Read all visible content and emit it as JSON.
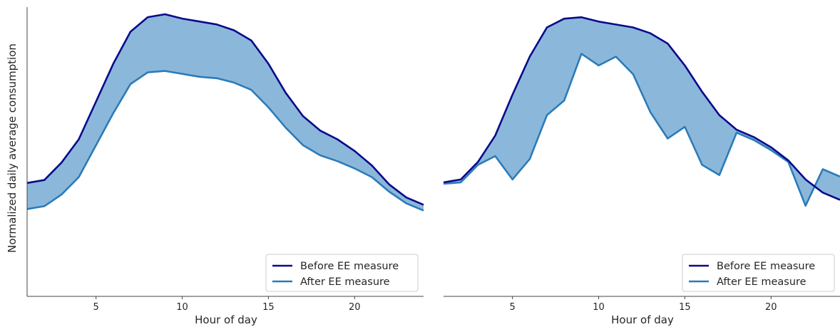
{
  "colors": {
    "before": "#0a0a8a",
    "after": "#2b7bba",
    "fill": "#8bb8da",
    "axis": "#444444"
  },
  "chart_data": [
    {
      "type": "area",
      "title": "",
      "xlabel": "Hour of day",
      "ylabel": "Normalized daily average consumption",
      "xlim": [
        1,
        24
      ],
      "ylim": [
        0,
        1
      ],
      "xticks": [
        5,
        10,
        15,
        20
      ],
      "ytick_labels_shown": false,
      "grid": false,
      "legend_position": "lower-right",
      "x": [
        1,
        2,
        3,
        4,
        5,
        6,
        7,
        8,
        9,
        10,
        11,
        12,
        13,
        14,
        15,
        16,
        17,
        18,
        19,
        20,
        21,
        22,
        23,
        24
      ],
      "series": [
        {
          "name": "Before EE measure",
          "color_key": "before",
          "values": [
            0.44,
            0.45,
            0.51,
            0.59,
            0.72,
            0.85,
            0.96,
            1.01,
            1.02,
            1.005,
            0.995,
            0.985,
            0.965,
            0.93,
            0.85,
            0.75,
            0.67,
            0.62,
            0.59,
            0.55,
            0.5,
            0.435,
            0.39,
            0.365
          ]
        },
        {
          "name": "After EE measure",
          "color_key": "after",
          "values": [
            0.35,
            0.36,
            0.4,
            0.46,
            0.57,
            0.68,
            0.78,
            0.82,
            0.825,
            0.815,
            0.805,
            0.8,
            0.785,
            0.76,
            0.7,
            0.63,
            0.57,
            0.535,
            0.515,
            0.49,
            0.46,
            0.41,
            0.37,
            0.345
          ]
        }
      ],
      "fill_between": true
    },
    {
      "type": "area",
      "title": "",
      "xlabel": "Hour of day",
      "ylabel": "",
      "xlim": [
        1,
        24
      ],
      "ylim": [
        0,
        1
      ],
      "xticks": [
        5,
        10,
        15,
        20
      ],
      "ytick_labels_shown": false,
      "grid": false,
      "legend_position": "lower-right",
      "x": [
        1,
        2,
        3,
        4,
        5,
        6,
        7,
        8,
        9,
        10,
        11,
        12,
        13,
        14,
        15,
        16,
        17,
        18,
        19,
        20,
        21,
        22,
        23,
        24
      ],
      "series": [
        {
          "name": "Before EE measure",
          "color_key": "before",
          "values": [
            0.44,
            0.45,
            0.51,
            0.6,
            0.74,
            0.87,
            0.97,
            1.0,
            1.005,
            0.99,
            0.98,
            0.97,
            0.95,
            0.915,
            0.84,
            0.75,
            0.67,
            0.62,
            0.595,
            0.56,
            0.515,
            0.45,
            0.405,
            0.38
          ]
        },
        {
          "name": "After EE measure",
          "color_key": "after",
          "values": [
            0.435,
            0.44,
            0.5,
            0.53,
            0.45,
            0.52,
            0.67,
            0.72,
            0.88,
            0.84,
            0.87,
            0.81,
            0.68,
            0.59,
            0.63,
            0.5,
            0.465,
            0.61,
            0.585,
            0.55,
            0.51,
            0.36,
            0.485,
            0.46
          ]
        }
      ],
      "fill_between": true
    }
  ]
}
